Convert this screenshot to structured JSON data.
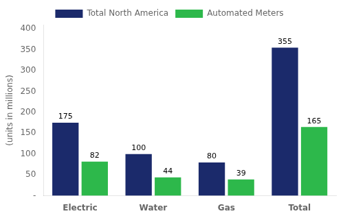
{
  "chart_data": {
    "type": "bar",
    "categories": [
      "Electric",
      "Water",
      "Gas",
      "Total"
    ],
    "series": [
      {
        "name": "Total North America",
        "color": "#1b2a6b",
        "values": [
          175,
          100,
          80,
          355
        ]
      },
      {
        "name": "Automated Meters",
        "color": "#2db84b",
        "values": [
          82,
          44,
          39,
          165
        ]
      }
    ],
    "ylabel": "(units in millions)",
    "ylim": [
      0,
      410
    ],
    "yticks": [
      {
        "value": 0,
        "label": "-"
      },
      50,
      100,
      150,
      200,
      250,
      300,
      350,
      400
    ],
    "grid": false,
    "legend": "top",
    "data_labels": true
  }
}
